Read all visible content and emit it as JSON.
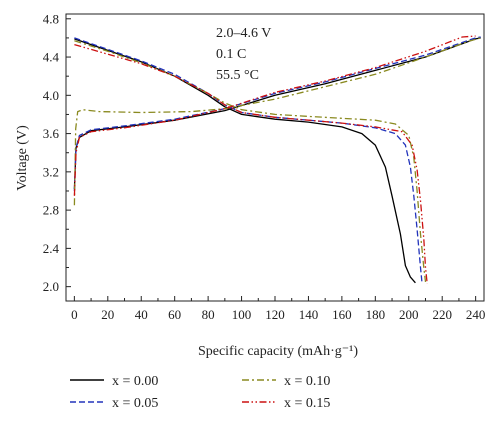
{
  "chart_data": {
    "type": "line",
    "title": "",
    "xlabel": "Specific capacity (mAh·g⁻¹)",
    "ylabel": "Voltage (V)",
    "xlim": [
      -5,
      245
    ],
    "ylim": [
      1.85,
      4.85
    ],
    "x_ticks": [
      "0",
      "20",
      "40",
      "60",
      "80",
      "100",
      "120",
      "140",
      "160",
      "180",
      "200",
      "220",
      "240"
    ],
    "y_ticks": [
      "2.0",
      "2.4",
      "2.8",
      "3.2",
      "3.6",
      "4.0",
      "4.4",
      "4.8"
    ],
    "annotations": [
      "2.0–4.6 V",
      "0.1 C",
      "55.5 °C"
    ],
    "grid": false,
    "legend_position": "bottom",
    "series": [
      {
        "name": "x = 0.00",
        "color": "#000000",
        "dash": "solid",
        "charge": [
          [
            0,
            3.02
          ],
          [
            1,
            3.45
          ],
          [
            3,
            3.56
          ],
          [
            10,
            3.63
          ],
          [
            30,
            3.67
          ],
          [
            60,
            3.74
          ],
          [
            90,
            3.84
          ],
          [
            120,
            4.0
          ],
          [
            150,
            4.12
          ],
          [
            180,
            4.26
          ],
          [
            210,
            4.4
          ],
          [
            240,
            4.59
          ],
          [
            243,
            4.6
          ]
        ],
        "discharge": [
          [
            0,
            4.59
          ],
          [
            20,
            4.47
          ],
          [
            40,
            4.35
          ],
          [
            60,
            4.2
          ],
          [
            80,
            4.0
          ],
          [
            90,
            3.88
          ],
          [
            100,
            3.8
          ],
          [
            120,
            3.75
          ],
          [
            140,
            3.72
          ],
          [
            160,
            3.67
          ],
          [
            172,
            3.6
          ],
          [
            180,
            3.48
          ],
          [
            186,
            3.25
          ],
          [
            190,
            2.95
          ],
          [
            195,
            2.55
          ],
          [
            198,
            2.22
          ],
          [
            201,
            2.1
          ],
          [
            204,
            2.04
          ]
        ]
      },
      {
        "name": "x = 0.05",
        "color": "#2233bb",
        "dash": "dashed",
        "charge": [
          [
            0,
            3.0
          ],
          [
            1,
            3.45
          ],
          [
            3,
            3.58
          ],
          [
            10,
            3.64
          ],
          [
            30,
            3.68
          ],
          [
            60,
            3.75
          ],
          [
            90,
            3.86
          ],
          [
            120,
            4.02
          ],
          [
            150,
            4.14
          ],
          [
            180,
            4.28
          ],
          [
            210,
            4.42
          ],
          [
            240,
            4.6
          ],
          [
            243,
            4.61
          ]
        ],
        "discharge": [
          [
            0,
            4.6
          ],
          [
            20,
            4.48
          ],
          [
            40,
            4.36
          ],
          [
            60,
            4.22
          ],
          [
            80,
            4.02
          ],
          [
            90,
            3.9
          ],
          [
            100,
            3.82
          ],
          [
            120,
            3.77
          ],
          [
            140,
            3.74
          ],
          [
            160,
            3.71
          ],
          [
            180,
            3.66
          ],
          [
            192,
            3.6
          ],
          [
            198,
            3.48
          ],
          [
            201,
            3.25
          ],
          [
            203,
            2.95
          ],
          [
            205,
            2.6
          ],
          [
            207,
            2.2
          ],
          [
            208,
            2.03
          ]
        ]
      },
      {
        "name": "x = 0.10",
        "color": "#8a8a20",
        "dash": "dashdot",
        "charge": [
          [
            0,
            2.85
          ],
          [
            0.8,
            3.65
          ],
          [
            2,
            3.83
          ],
          [
            5,
            3.85
          ],
          [
            15,
            3.83
          ],
          [
            40,
            3.82
          ],
          [
            70,
            3.83
          ],
          [
            90,
            3.86
          ],
          [
            120,
            3.96
          ],
          [
            150,
            4.09
          ],
          [
            180,
            4.22
          ],
          [
            210,
            4.4
          ],
          [
            235,
            4.56
          ],
          [
            243,
            4.6
          ]
        ],
        "discharge": [
          [
            0,
            4.57
          ],
          [
            20,
            4.46
          ],
          [
            40,
            4.34
          ],
          [
            60,
            4.2
          ],
          [
            80,
            4.02
          ],
          [
            90,
            3.92
          ],
          [
            100,
            3.85
          ],
          [
            120,
            3.8
          ],
          [
            140,
            3.78
          ],
          [
            160,
            3.76
          ],
          [
            180,
            3.74
          ],
          [
            192,
            3.7
          ],
          [
            200,
            3.58
          ],
          [
            203,
            3.35
          ],
          [
            205,
            3.0
          ],
          [
            207,
            2.55
          ],
          [
            209,
            2.2
          ],
          [
            210,
            2.05
          ]
        ]
      },
      {
        "name": "x = 0.15",
        "color": "#cc1111",
        "dash": "dashdotdot",
        "charge": [
          [
            0,
            2.95
          ],
          [
            1,
            3.4
          ],
          [
            3,
            3.56
          ],
          [
            10,
            3.62
          ],
          [
            30,
            3.66
          ],
          [
            60,
            3.74
          ],
          [
            90,
            3.86
          ],
          [
            120,
            4.03
          ],
          [
            150,
            4.15
          ],
          [
            180,
            4.29
          ],
          [
            210,
            4.46
          ],
          [
            232,
            4.61
          ],
          [
            240,
            4.62
          ]
        ],
        "discharge": [
          [
            0,
            4.53
          ],
          [
            20,
            4.43
          ],
          [
            40,
            4.33
          ],
          [
            60,
            4.2
          ],
          [
            80,
            4.02
          ],
          [
            90,
            3.9
          ],
          [
            100,
            3.82
          ],
          [
            120,
            3.77
          ],
          [
            140,
            3.74
          ],
          [
            160,
            3.71
          ],
          [
            180,
            3.67
          ],
          [
            196,
            3.62
          ],
          [
            202,
            3.48
          ],
          [
            205,
            3.22
          ],
          [
            207,
            2.9
          ],
          [
            209,
            2.5
          ],
          [
            210,
            2.2
          ],
          [
            211,
            2.03
          ]
        ]
      }
    ]
  }
}
